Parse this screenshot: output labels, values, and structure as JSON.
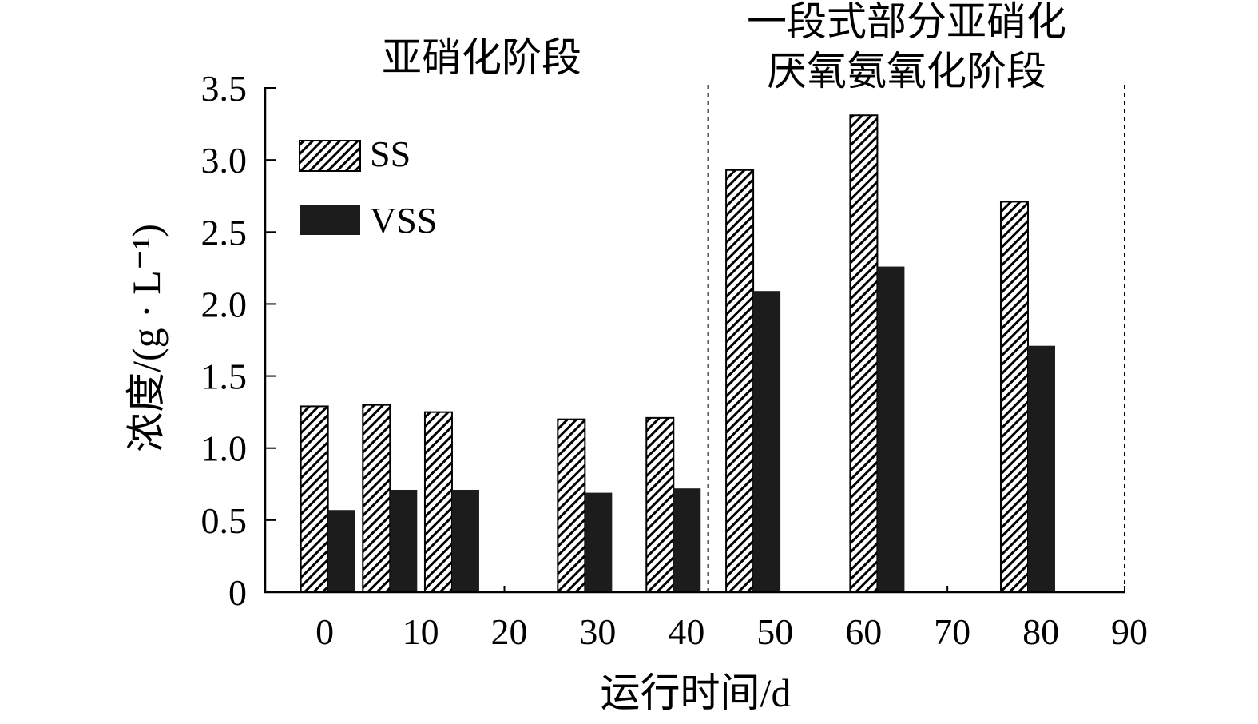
{
  "chart_data": {
    "type": "bar",
    "xlabel": "运行时间/d",
    "ylabel": "浓度/(g · L⁻¹)",
    "xlim": [
      -7,
      90
    ],
    "ylim": [
      0,
      3.5
    ],
    "grid": false,
    "legend": "top-left",
    "x": [
      0,
      7,
      14,
      29,
      39,
      48,
      62,
      79
    ],
    "series": [
      {
        "name": "SS",
        "pattern": "diagonal-hatch",
        "color": "#000000",
        "values": [
          1.29,
          1.3,
          1.25,
          1.2,
          1.21,
          2.93,
          3.31,
          2.71
        ]
      },
      {
        "name": "VSS",
        "color": "#1c1c1c",
        "values": [
          0.57,
          0.71,
          0.71,
          0.69,
          0.72,
          2.09,
          2.26,
          1.71
        ]
      }
    ],
    "xticks": [
      {
        "value": 0,
        "label": "0"
      },
      {
        "value": 10,
        "label": "10"
      },
      {
        "value": 20,
        "label": "20"
      },
      {
        "value": 30,
        "label": "30"
      },
      {
        "value": 40,
        "label": "40"
      },
      {
        "value": 50,
        "label": "50"
      },
      {
        "value": 60,
        "label": "60"
      },
      {
        "value": 70,
        "label": "70"
      },
      {
        "value": 80,
        "label": "80"
      },
      {
        "value": 90,
        "label": "90"
      }
    ],
    "yticks": [
      {
        "value": 0,
        "label": "0"
      },
      {
        "value": 0.5,
        "label": "0.5"
      },
      {
        "value": 1.0,
        "label": "1.0"
      },
      {
        "value": 1.5,
        "label": "1.5"
      },
      {
        "value": 2.0,
        "label": "2.0"
      },
      {
        "value": 2.5,
        "label": "2.5"
      },
      {
        "value": 3.0,
        "label": "3.0"
      },
      {
        "value": 3.5,
        "label": "3.5"
      }
    ],
    "phase_boundaries": [
      43,
      90
    ],
    "annotations": [
      {
        "lines": [
          "亚硝化阶段"
        ]
      },
      {
        "lines": [
          "一段式部分亚硝化",
          "厌氧氨氧化阶段"
        ]
      }
    ]
  }
}
